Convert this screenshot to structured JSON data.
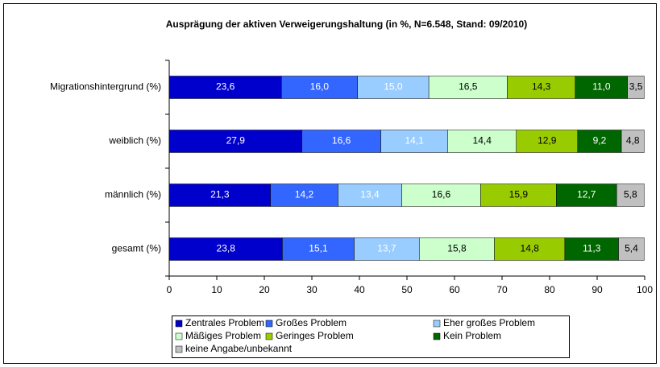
{
  "chart_data": {
    "type": "stacked_barh",
    "title": "Ausprägung der aktiven Verweigerungshaltung (in %, N=6.548, Stand: 09/2010)",
    "categories": [
      "Migrationshintergrund (%)",
      "weiblich (%)",
      "männlich (%)",
      "gesamt (%)"
    ],
    "series": [
      {
        "name": "Zentrales Problem",
        "color": "#0000cc",
        "values": [
          23.6,
          27.9,
          21.3,
          23.8
        ],
        "value_labels": [
          "23,6",
          "27,9",
          "21,3",
          "23,8"
        ]
      },
      {
        "name": "Großes Problem",
        "color": "#3366ff",
        "values": [
          16.0,
          16.6,
          14.2,
          15.1
        ],
        "value_labels": [
          "16,0",
          "16,6",
          "14,2",
          "15,1"
        ]
      },
      {
        "name": "Eher großes Problem",
        "color": "#99ccff",
        "values": [
          15.0,
          14.1,
          13.4,
          13.7
        ],
        "value_labels": [
          "15,0",
          "14,1",
          "13,4",
          "13,7"
        ]
      },
      {
        "name": "Mäßiges Problem",
        "color": "#ccffcc",
        "values": [
          16.5,
          14.4,
          16.6,
          15.8
        ],
        "value_labels": [
          "16,5",
          "14,4",
          "16,6",
          "15,8"
        ]
      },
      {
        "name": "Geringes Problem",
        "color": "#99cc00",
        "values": [
          14.3,
          12.9,
          15.9,
          14.8
        ],
        "value_labels": [
          "14,3",
          "12,9",
          "15,9",
          "14,8"
        ]
      },
      {
        "name": "Kein Problem",
        "color": "#006600",
        "values": [
          11.0,
          9.2,
          12.7,
          11.3
        ],
        "value_labels": [
          "11,0",
          "9,2",
          "12,7",
          "11,3"
        ]
      },
      {
        "name": "keine Angabe/unbekannt",
        "color": "#c0c0c0",
        "values": [
          3.5,
          4.8,
          5.8,
          5.4
        ],
        "value_labels": [
          "3,5",
          "4,8",
          "5,8",
          "5,4"
        ]
      }
    ],
    "xlim": [
      0,
      100
    ],
    "xticks": [
      0,
      10,
      20,
      30,
      40,
      50,
      60,
      70,
      80,
      90,
      100
    ]
  }
}
